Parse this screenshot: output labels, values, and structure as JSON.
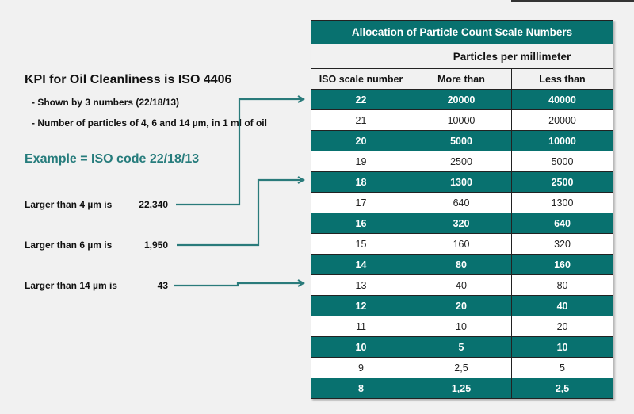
{
  "left_panel": {
    "title": "KPI for Oil Cleanliness is ISO 4406",
    "bullets": [
      "- Shown by 3 numbers (22/18/13)",
      "- Number of particles of 4, 6 and 14 µm, in 1 ml of oil"
    ],
    "example": "Example = ISO code 22/18/13",
    "measurements": [
      {
        "label": "Larger than 4 µm is",
        "value": "22,340",
        "points_to_iso": "22"
      },
      {
        "label": "Larger than 6 µm is",
        "value": "1,950",
        "points_to_iso": "18"
      },
      {
        "label": "Larger than 14 µm is",
        "value": "43",
        "points_to_iso": "13"
      }
    ]
  },
  "table": {
    "title": "Allocation of Particle Count Scale Numbers",
    "group_header": "Particles per millimeter",
    "columns": [
      "ISO scale number",
      "More than",
      "Less than"
    ],
    "rows": [
      [
        "22",
        "20000",
        "40000"
      ],
      [
        "21",
        "10000",
        "20000"
      ],
      [
        "20",
        "5000",
        "10000"
      ],
      [
        "19",
        "2500",
        "5000"
      ],
      [
        "18",
        "1300",
        "2500"
      ],
      [
        "17",
        "640",
        "1300"
      ],
      [
        "16",
        "320",
        "640"
      ],
      [
        "15",
        "160",
        "320"
      ],
      [
        "14",
        "80",
        "160"
      ],
      [
        "13",
        "40",
        "80"
      ],
      [
        "12",
        "20",
        "40"
      ],
      [
        "11",
        "10",
        "20"
      ],
      [
        "10",
        "5",
        "10"
      ],
      [
        "9",
        "2,5",
        "5"
      ],
      [
        "8",
        "1,25",
        "2,5"
      ]
    ]
  },
  "colors": {
    "accent_teal": "#08716f",
    "example_text": "#267c7c",
    "arrow": "#2a7b7b",
    "background": "#f1f1f1"
  }
}
